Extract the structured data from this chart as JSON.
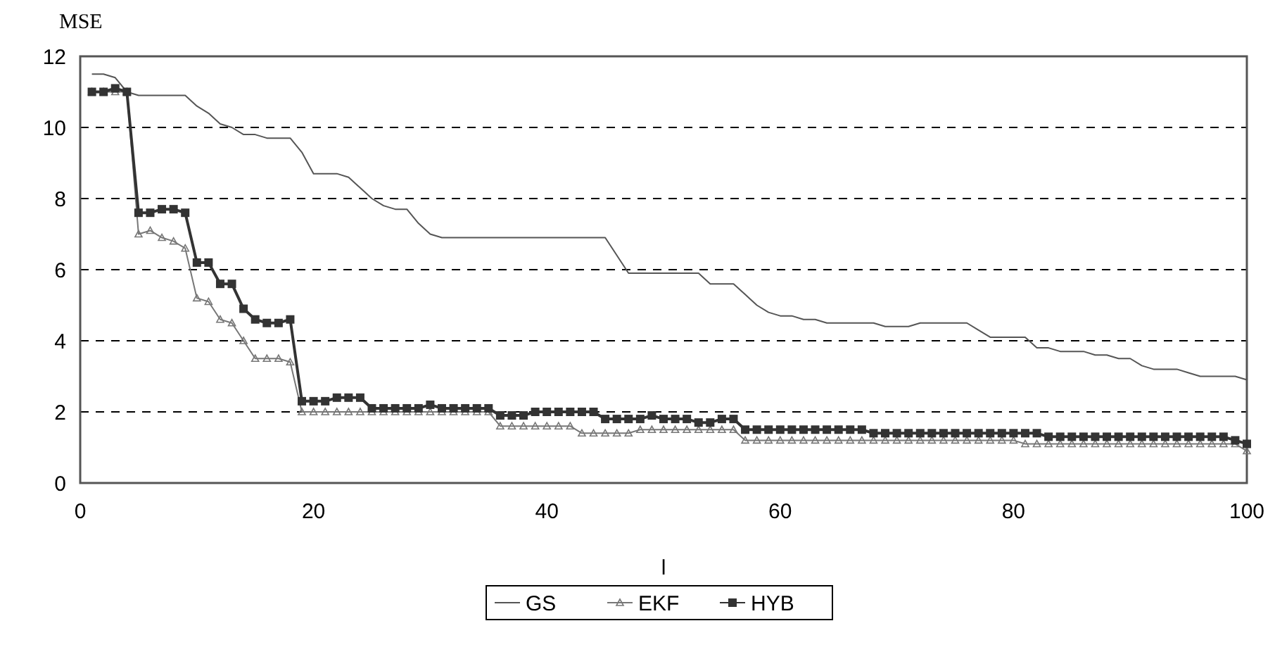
{
  "chart_data": {
    "type": "line",
    "xlabel": "l",
    "ylabel": "MSE",
    "xlim": [
      0,
      100
    ],
    "ylim": [
      0,
      12
    ],
    "xticks": [
      0,
      20,
      40,
      60,
      80,
      100
    ],
    "yticks": [
      0,
      2,
      4,
      6,
      8,
      10,
      12
    ],
    "grid": "y",
    "legend": "bottom",
    "x": [
      1,
      2,
      3,
      4,
      5,
      6,
      7,
      8,
      9,
      10,
      11,
      12,
      13,
      14,
      15,
      16,
      17,
      18,
      19,
      20,
      21,
      22,
      23,
      24,
      25,
      26,
      27,
      28,
      29,
      30,
      31,
      32,
      33,
      34,
      35,
      36,
      37,
      38,
      39,
      40,
      41,
      42,
      43,
      44,
      45,
      46,
      47,
      48,
      49,
      50,
      51,
      52,
      53,
      54,
      55,
      56,
      57,
      58,
      59,
      60,
      61,
      62,
      63,
      64,
      65,
      66,
      67,
      68,
      69,
      70,
      71,
      72,
      73,
      74,
      75,
      76,
      77,
      78,
      79,
      80,
      81,
      82,
      83,
      84,
      85,
      86,
      87,
      88,
      89,
      90,
      91,
      92,
      93,
      94,
      95,
      96,
      97,
      98,
      99,
      100
    ],
    "series": [
      {
        "name": "GS",
        "color": "#555555",
        "marker": "none",
        "values": [
          11.5,
          11.5,
          11.4,
          11.0,
          10.9,
          10.9,
          10.9,
          10.9,
          10.9,
          10.6,
          10.4,
          10.1,
          10.0,
          9.8,
          9.8,
          9.7,
          9.7,
          9.7,
          9.3,
          8.7,
          8.7,
          8.7,
          8.6,
          8.3,
          8.0,
          7.8,
          7.7,
          7.7,
          7.3,
          7.0,
          6.9,
          6.9,
          6.9,
          6.9,
          6.9,
          6.9,
          6.9,
          6.9,
          6.9,
          6.9,
          6.9,
          6.9,
          6.9,
          6.9,
          6.9,
          6.4,
          5.9,
          5.9,
          5.9,
          5.9,
          5.9,
          5.9,
          5.9,
          5.6,
          5.6,
          5.6,
          5.3,
          5.0,
          4.8,
          4.7,
          4.7,
          4.6,
          4.6,
          4.5,
          4.5,
          4.5,
          4.5,
          4.5,
          4.4,
          4.4,
          4.4,
          4.5,
          4.5,
          4.5,
          4.5,
          4.5,
          4.3,
          4.1,
          4.1,
          4.1,
          4.1,
          3.8,
          3.8,
          3.7,
          3.7,
          3.7,
          3.6,
          3.6,
          3.5,
          3.5,
          3.3,
          3.2,
          3.2,
          3.2,
          3.1,
          3.0,
          3.0,
          3.0,
          3.0,
          2.9
        ]
      },
      {
        "name": "EKF",
        "color": "#777777",
        "marker": "triangle",
        "values": [
          11.0,
          11.0,
          11.0,
          11.0,
          7.0,
          7.1,
          6.9,
          6.8,
          6.6,
          5.2,
          5.1,
          4.6,
          4.5,
          4.0,
          3.5,
          3.5,
          3.5,
          3.4,
          2.0,
          2.0,
          2.0,
          2.0,
          2.0,
          2.0,
          2.0,
          2.0,
          2.0,
          2.0,
          2.0,
          2.0,
          2.0,
          2.0,
          2.0,
          2.0,
          2.0,
          1.6,
          1.6,
          1.6,
          1.6,
          1.6,
          1.6,
          1.6,
          1.4,
          1.4,
          1.4,
          1.4,
          1.4,
          1.5,
          1.5,
          1.5,
          1.5,
          1.5,
          1.5,
          1.5,
          1.5,
          1.5,
          1.2,
          1.2,
          1.2,
          1.2,
          1.2,
          1.2,
          1.2,
          1.2,
          1.2,
          1.2,
          1.2,
          1.2,
          1.2,
          1.2,
          1.2,
          1.2,
          1.2,
          1.2,
          1.2,
          1.2,
          1.2,
          1.2,
          1.2,
          1.2,
          1.1,
          1.1,
          1.1,
          1.1,
          1.1,
          1.1,
          1.1,
          1.1,
          1.1,
          1.1,
          1.1,
          1.1,
          1.1,
          1.1,
          1.1,
          1.1,
          1.1,
          1.1,
          1.1,
          0.9
        ]
      },
      {
        "name": "HYB",
        "color": "#333333",
        "marker": "square",
        "values": [
          11.0,
          11.0,
          11.1,
          11.0,
          7.6,
          7.6,
          7.7,
          7.7,
          7.6,
          6.2,
          6.2,
          5.6,
          5.6,
          4.9,
          4.6,
          4.5,
          4.5,
          4.6,
          2.3,
          2.3,
          2.3,
          2.4,
          2.4,
          2.4,
          2.1,
          2.1,
          2.1,
          2.1,
          2.1,
          2.2,
          2.1,
          2.1,
          2.1,
          2.1,
          2.1,
          1.9,
          1.9,
          1.9,
          2.0,
          2.0,
          2.0,
          2.0,
          2.0,
          2.0,
          1.8,
          1.8,
          1.8,
          1.8,
          1.9,
          1.8,
          1.8,
          1.8,
          1.7,
          1.7,
          1.8,
          1.8,
          1.5,
          1.5,
          1.5,
          1.5,
          1.5,
          1.5,
          1.5,
          1.5,
          1.5,
          1.5,
          1.5,
          1.4,
          1.4,
          1.4,
          1.4,
          1.4,
          1.4,
          1.4,
          1.4,
          1.4,
          1.4,
          1.4,
          1.4,
          1.4,
          1.4,
          1.4,
          1.3,
          1.3,
          1.3,
          1.3,
          1.3,
          1.3,
          1.3,
          1.3,
          1.3,
          1.3,
          1.3,
          1.3,
          1.3,
          1.3,
          1.3,
          1.3,
          1.2,
          1.1
        ]
      }
    ]
  }
}
